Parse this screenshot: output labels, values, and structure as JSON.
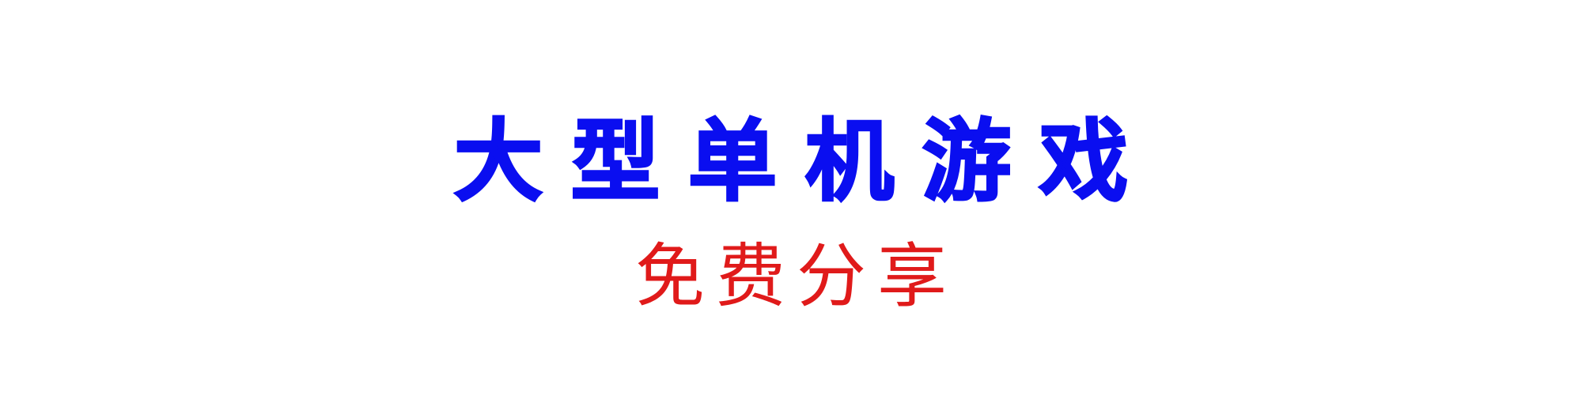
{
  "banner": {
    "title": "大型单机游戏",
    "subtitle": "免费分享",
    "colors": {
      "background": "#ffffff",
      "title": "#0a0ef0",
      "subtitle": "#e01a1a"
    }
  }
}
